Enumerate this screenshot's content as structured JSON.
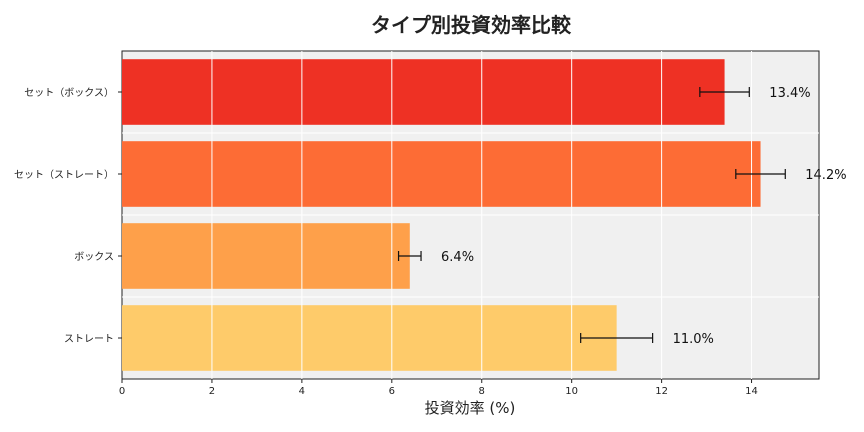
{
  "chart_data": {
    "type": "bar",
    "orientation": "horizontal",
    "title": "タイプ別投資効率比較",
    "xlabel": "投資効率 (%)",
    "ylabel": "",
    "categories": [
      "セット（ボックス）",
      "セット（ストレート）",
      "ボックス",
      "ストレート"
    ],
    "values": [
      13.4,
      14.2,
      6.4,
      11.0
    ],
    "errors": [
      0.55,
      0.55,
      0.25,
      0.8
    ],
    "data_labels": [
      "13.4%",
      "14.2%",
      "6.4%",
      "11.0%"
    ],
    "bar_colors": [
      "#ee3124",
      "#fd6c35",
      "#fea04a",
      "#fecb6a"
    ],
    "xlim": [
      0,
      15.5
    ],
    "xticks": [
      0,
      2,
      4,
      6,
      8,
      10,
      12,
      14
    ],
    "grid": true,
    "background": "#f0f0f0"
  }
}
